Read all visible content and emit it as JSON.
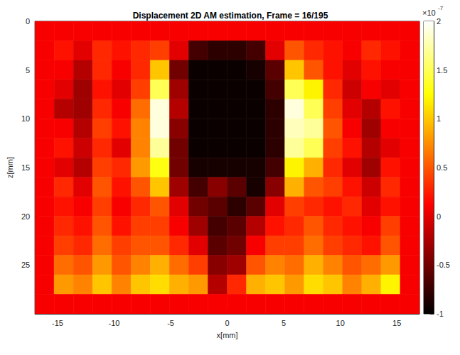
{
  "chart_data": {
    "type": "heatmap",
    "title": "Displacement 2D AM estimation, Frame = 16/195",
    "x_label": "x[mm]",
    "y_label": "z[mm]",
    "xlim": [
      -17,
      17
    ],
    "ylim": [
      0,
      30
    ],
    "xticks": [
      -15,
      -10,
      -5,
      0,
      5,
      10,
      15
    ],
    "yticks": [
      0,
      5,
      10,
      15,
      20,
      25
    ],
    "x_edges": [
      -17,
      -15.3,
      -13.6,
      -11.9,
      -10.2,
      -8.5,
      -6.8,
      -5.1,
      -3.4,
      -1.7,
      0,
      1.7,
      3.4,
      5.1,
      6.8,
      8.5,
      10.2,
      11.9,
      13.6,
      15.3,
      17
    ],
    "y_edges": [
      0,
      2,
      4,
      6,
      8,
      10,
      12,
      14,
      16,
      18,
      20,
      22,
      24,
      26,
      28,
      30
    ],
    "cells": [
      [
        0.1,
        0.1,
        0.1,
        0.1,
        0.1,
        0.1,
        0.1,
        0.1,
        0.1,
        0.1,
        0.1,
        0.1,
        0.1,
        0.1,
        0.1,
        0.1,
        0.1,
        0.1,
        0.1,
        0.1
      ],
      [
        0.1,
        0.2,
        0.0,
        0.3,
        0.2,
        0.3,
        0.4,
        0.0,
        -0.7,
        -0.8,
        -0.8,
        -0.7,
        0.0,
        0.5,
        0.3,
        0.2,
        0.1,
        0.3,
        0.2,
        0.1
      ],
      [
        0.1,
        0.1,
        -0.2,
        0.3,
        0.1,
        0.3,
        1.0,
        -0.5,
        -0.95,
        -0.95,
        -0.95,
        -0.9,
        -0.6,
        1.0,
        0.5,
        0.2,
        0.0,
        0.2,
        0.1,
        0.1
      ],
      [
        0.1,
        0.0,
        -0.3,
        0.2,
        0.0,
        0.4,
        1.5,
        -0.3,
        -0.95,
        -0.95,
        -0.95,
        -0.95,
        -0.7,
        1.5,
        1.2,
        0.3,
        -0.1,
        0.1,
        0.0,
        0.1
      ],
      [
        0.1,
        -0.2,
        -0.3,
        0.3,
        0.1,
        0.6,
        1.9,
        -0.2,
        -0.95,
        -0.95,
        -0.95,
        -0.95,
        -0.8,
        1.9,
        1.5,
        0.4,
        0.0,
        -0.2,
        0.2,
        0.1
      ],
      [
        0.1,
        0.1,
        -0.2,
        0.4,
        0.2,
        0.7,
        1.9,
        -0.4,
        -0.95,
        -0.95,
        -0.95,
        -0.95,
        -0.8,
        1.8,
        1.7,
        0.5,
        0.1,
        -0.3,
        0.1,
        0.1
      ],
      [
        0.1,
        0.2,
        -0.1,
        0.3,
        0.0,
        0.7,
        1.7,
        -0.5,
        -0.95,
        -0.95,
        -0.95,
        -0.95,
        -0.8,
        1.7,
        1.5,
        0.4,
        0.2,
        -0.2,
        0.0,
        0.1
      ],
      [
        0.1,
        0.0,
        -0.2,
        0.4,
        0.3,
        0.8,
        1.3,
        -0.5,
        -0.9,
        -0.9,
        -0.9,
        -0.9,
        -0.7,
        1.2,
        0.9,
        0.3,
        0.0,
        -0.3,
        0.2,
        0.1
      ],
      [
        0.1,
        0.3,
        0.0,
        0.5,
        0.2,
        0.5,
        1.0,
        -0.3,
        -0.7,
        -0.4,
        -0.6,
        -0.9,
        -0.4,
        0.9,
        0.5,
        0.4,
        0.2,
        -0.1,
        0.3,
        0.1
      ],
      [
        0.1,
        0.2,
        0.1,
        0.4,
        0.1,
        0.3,
        0.5,
        0.0,
        -0.5,
        -0.6,
        -0.8,
        -0.6,
        0.0,
        0.4,
        0.3,
        0.2,
        0.3,
        0.0,
        0.2,
        0.1
      ],
      [
        0.1,
        0.3,
        0.2,
        0.5,
        0.2,
        0.4,
        0.4,
        0.1,
        -0.3,
        -0.7,
        -0.6,
        -0.2,
        0.2,
        0.3,
        0.5,
        0.3,
        0.2,
        0.1,
        0.4,
        0.1
      ],
      [
        0.1,
        0.4,
        0.3,
        0.6,
        0.4,
        0.5,
        0.5,
        0.3,
        0.0,
        -0.6,
        -0.5,
        0.1,
        0.4,
        0.4,
        0.6,
        0.4,
        0.3,
        0.2,
        0.5,
        0.1
      ],
      [
        0.1,
        0.6,
        0.5,
        0.8,
        0.5,
        0.7,
        0.9,
        0.6,
        0.4,
        -0.4,
        -0.3,
        0.5,
        0.7,
        0.6,
        0.9,
        0.7,
        0.5,
        0.6,
        0.8,
        0.1
      ],
      [
        0.1,
        0.8,
        0.7,
        1.0,
        0.7,
        1.0,
        1.1,
        0.9,
        0.8,
        -0.2,
        0.3,
        0.9,
        1.0,
        0.8,
        1.1,
        1.0,
        0.7,
        0.9,
        1.2,
        0.1
      ],
      [
        0.1,
        0.1,
        0.1,
        0.1,
        0.1,
        0.1,
        0.1,
        0.1,
        0.1,
        0.1,
        0.1,
        0.1,
        0.1,
        0.1,
        0.1,
        0.1,
        0.1,
        0.1,
        0.1,
        0.1
      ]
    ],
    "colorbar": {
      "range": [
        -1,
        2
      ],
      "ticks": [
        -1,
        -0.5,
        0,
        0.5,
        1,
        1.5,
        2
      ],
      "multiplier": {
        "base": "×10",
        "exponent": "-7"
      }
    }
  }
}
